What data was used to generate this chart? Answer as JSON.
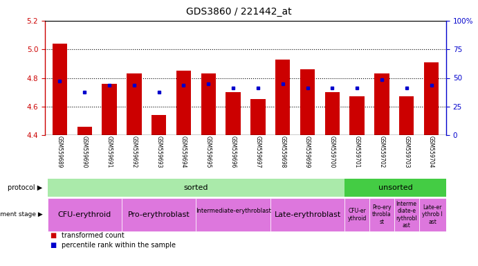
{
  "title": "GDS3860 / 221442_at",
  "samples": [
    "GSM559689",
    "GSM559690",
    "GSM559691",
    "GSM559692",
    "GSM559693",
    "GSM559694",
    "GSM559695",
    "GSM559696",
    "GSM559697",
    "GSM559698",
    "GSM559699",
    "GSM559700",
    "GSM559701",
    "GSM559702",
    "GSM559703",
    "GSM559704"
  ],
  "transformed_count": [
    5.04,
    4.46,
    4.76,
    4.83,
    4.54,
    4.85,
    4.83,
    4.7,
    4.65,
    4.93,
    4.86,
    4.7,
    4.67,
    4.83,
    4.67,
    4.91
  ],
  "percentile_rank": [
    4.78,
    4.7,
    4.75,
    4.75,
    4.7,
    4.75,
    4.76,
    4.73,
    4.73,
    4.76,
    4.73,
    4.73,
    4.73,
    4.79,
    4.73,
    4.75
  ],
  "ylim": [
    4.4,
    5.2
  ],
  "yticks": [
    4.4,
    4.6,
    4.8,
    5.0,
    5.2
  ],
  "y2ticks": [
    0,
    25,
    50,
    75,
    100
  ],
  "y2ticklabels": [
    "0",
    "25",
    "50",
    "75",
    "100%"
  ],
  "bar_color": "#cc0000",
  "dot_color": "#0000cc",
  "baseline": 4.4,
  "tick_bg_color": "#bbbbbb",
  "protocol_sorted_color": "#aaeaaa",
  "protocol_unsorted_color": "#44cc44",
  "dev_stage_color": "#dd77dd",
  "axis_color_left": "#cc0000",
  "axis_color_right": "#0000cc",
  "grid_dotted_color": "#000000"
}
